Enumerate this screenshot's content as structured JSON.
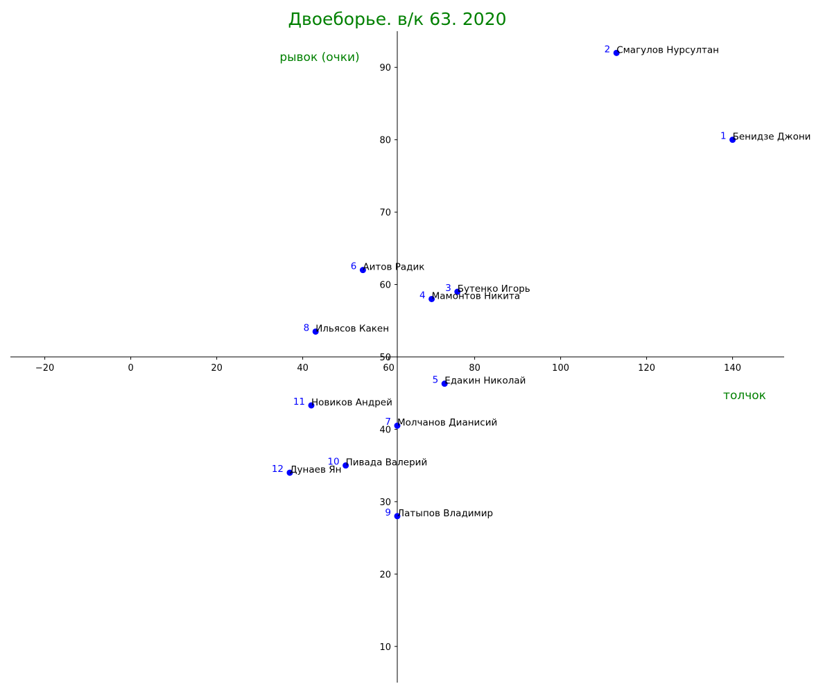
{
  "chart_data": {
    "type": "scatter",
    "title": "Двоеборье. в/к 63. 2020",
    "xlabel": "толчок",
    "ylabel": "рывок (очки)",
    "xlim": [
      -28,
      152
    ],
    "ylim": [
      5,
      95
    ],
    "x_ticks": [
      -20,
      0,
      20,
      40,
      60,
      80,
      100,
      120,
      140
    ],
    "y_ticks": [
      10,
      20,
      30,
      40,
      50,
      60,
      70,
      80,
      90
    ],
    "x_axis_at_y": 50,
    "y_axis_at_x": 62,
    "grid": false,
    "colors": {
      "title": "#008000",
      "axis_labels": "#008000",
      "points": "#0000ff",
      "rank_labels": "#0000ff",
      "names": "#000000"
    },
    "points": [
      {
        "rank": "1",
        "name": "Бенидзе Джони",
        "x": 140,
        "y": 80
      },
      {
        "rank": "2",
        "name": "Смагулов Нурсултан",
        "x": 113,
        "y": 92
      },
      {
        "rank": "3",
        "name": "Бутенко Игорь",
        "x": 76,
        "y": 59
      },
      {
        "rank": "4",
        "name": "Мамонтов Никита",
        "x": 70,
        "y": 58
      },
      {
        "rank": "5",
        "name": "Едакин Николай",
        "x": 73,
        "y": 46.3
      },
      {
        "rank": "6",
        "name": "Аитов Радик",
        "x": 54,
        "y": 62
      },
      {
        "rank": "7",
        "name": "Молчанов Дианисий",
        "x": 62,
        "y": 40.5
      },
      {
        "rank": "8",
        "name": "Ильясов Какен",
        "x": 43,
        "y": 53.5
      },
      {
        "rank": "9",
        "name": "Латыпов Владимир",
        "x": 62,
        "y": 28
      },
      {
        "rank": "10",
        "name": "Пивада Валерий",
        "x": 50,
        "y": 35
      },
      {
        "rank": "11",
        "name": "Новиков Андрей",
        "x": 42,
        "y": 43.3
      },
      {
        "rank": "12",
        "name": "Дунаев Ян",
        "x": 37,
        "y": 34
      }
    ]
  }
}
